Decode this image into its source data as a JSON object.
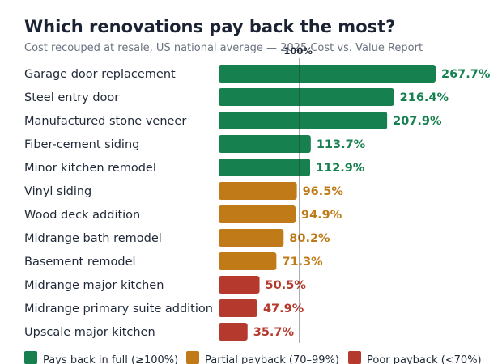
{
  "chart_data": {
    "type": "bar",
    "orientation": "horizontal",
    "title": "Which renovations pay back the most?",
    "subtitle": "Cost recouped at resale, US national average — 2025 Cost vs. Value Report",
    "reference_line": {
      "value": 100,
      "label": "100%"
    },
    "value_suffix": "%",
    "categories": [
      "Garage door replacement",
      "Steel entry door",
      "Manufactured stone veneer",
      "Fiber-cement siding",
      "Minor kitchen remodel",
      "Vinyl siding",
      "Wood deck addition",
      "Midrange bath remodel",
      "Basement remodel",
      "Midrange major kitchen",
      "Midrange primary suite addition",
      "Upscale major kitchen"
    ],
    "values": [
      267.7,
      216.4,
      207.9,
      113.7,
      112.9,
      96.5,
      94.9,
      80.2,
      71.3,
      50.5,
      47.9,
      35.7
    ],
    "groups": [
      "full",
      "full",
      "full",
      "full",
      "full",
      "partial",
      "partial",
      "partial",
      "partial",
      "poor",
      "poor",
      "poor"
    ],
    "xlim": [
      0,
      267.7
    ],
    "grid": false,
    "legend_position": "bottom",
    "legend": [
      {
        "key": "full",
        "label": "Pays back in full (≥100%)",
        "color": "#17804f"
      },
      {
        "key": "partial",
        "label": "Partial payback (70–99%)",
        "color": "#c07a18"
      },
      {
        "key": "poor",
        "label": "Poor payback (<70%)",
        "color": "#b53a2d"
      }
    ]
  }
}
